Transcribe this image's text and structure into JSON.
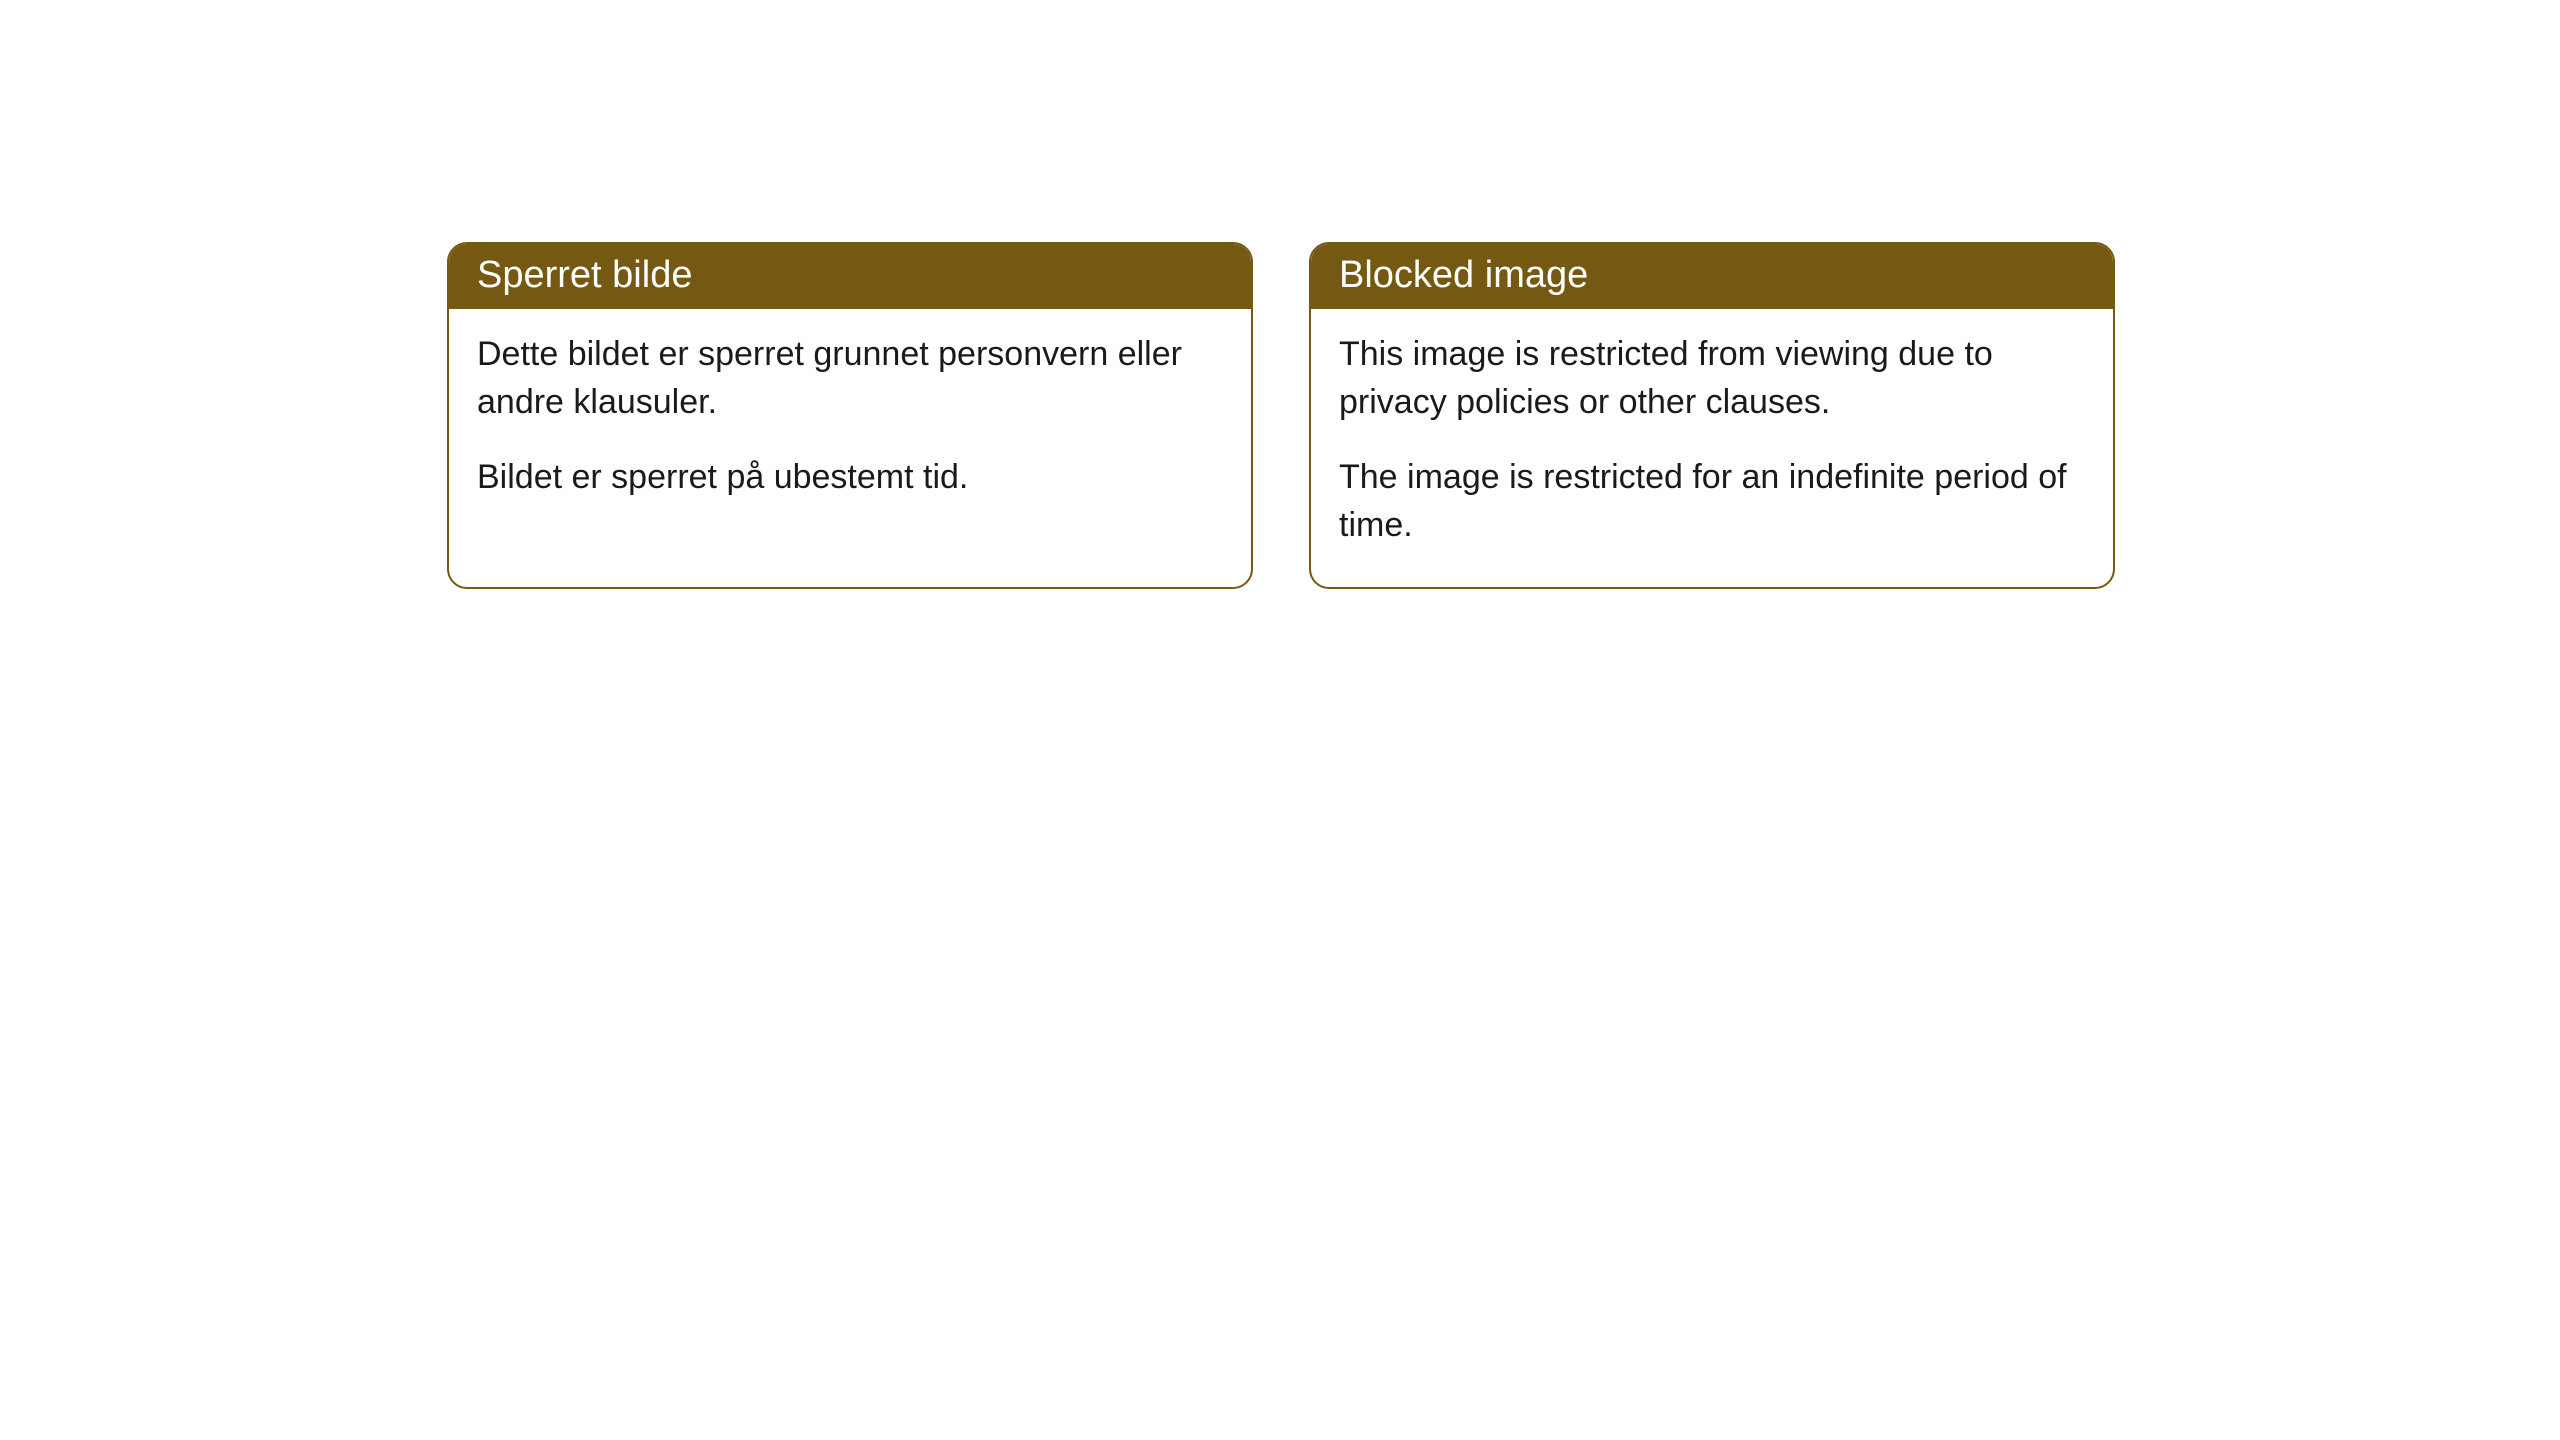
{
  "cards": [
    {
      "header": "Sperret bilde",
      "paragraph1": "Dette bildet er sperret grunnet personvern eller andre klausuler.",
      "paragraph2": "Bildet er sperret på ubestemt tid."
    },
    {
      "header": "Blocked image",
      "paragraph1": "This image is restricted from viewing due to privacy policies or other clauses.",
      "paragraph2": "The image is restricted for an indefinite period of time."
    }
  ],
  "style": {
    "header_bg_color": "#755912",
    "header_text_color": "#ffffff",
    "border_color": "#755912",
    "body_text_color": "#1a1a1a",
    "background_color": "#ffffff",
    "border_radius": 20,
    "header_fontsize": 38,
    "body_fontsize": 34
  }
}
